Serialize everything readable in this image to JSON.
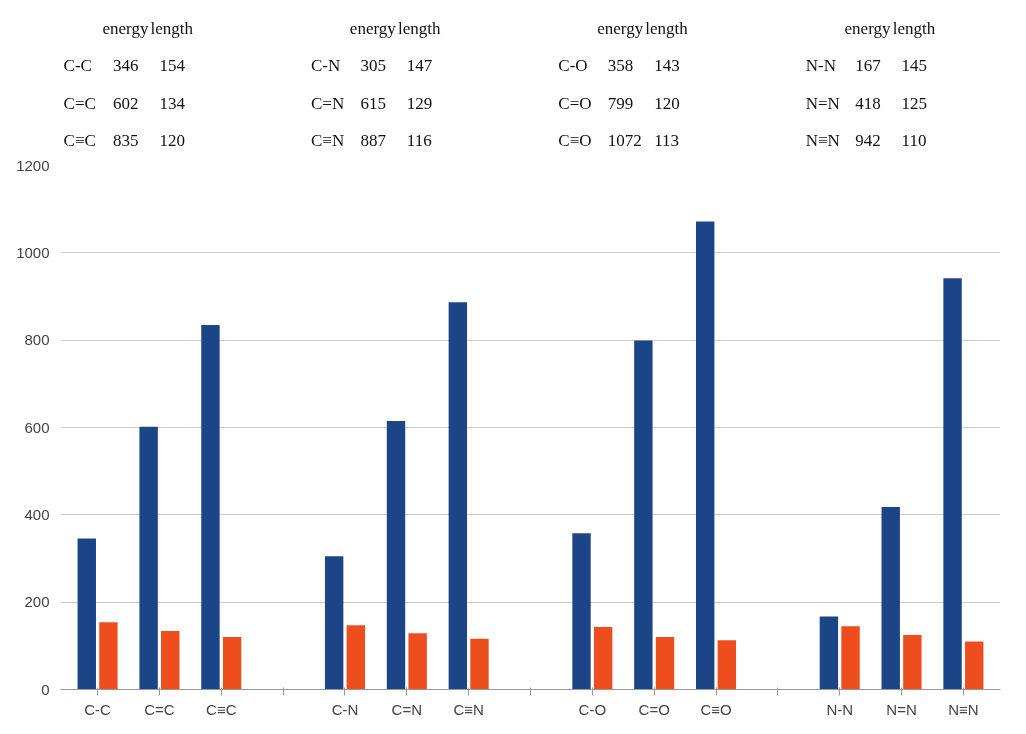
{
  "chart_data": {
    "type": "bar",
    "categories": [
      "C-C",
      "C=C",
      "C≡C",
      null,
      "C-N",
      "C=N",
      "C≡N",
      null,
      "C-O",
      "C=O",
      "C≡O",
      null,
      "N-N",
      "N=N",
      "N≡N"
    ],
    "series": [
      {
        "color": "#1c4587",
        "values": [
          346,
          602,
          835,
          null,
          305,
          615,
          887,
          null,
          358,
          799,
          1072,
          null,
          167,
          418,
          942
        ]
      },
      {
        "color": "#ee4d1e",
        "values": [
          154,
          134,
          120,
          null,
          147,
          129,
          116,
          null,
          143,
          120,
          113,
          null,
          145,
          125,
          110
        ]
      }
    ],
    "annotations": [
      "energy",
      "length",
      "C-C",
      "346",
      "154",
      "C=C",
      "602",
      "134",
      "C≡C",
      "835",
      "120",
      "energy",
      "length",
      "C-N",
      "305",
      "147",
      "C=N",
      "615",
      "129",
      "C≡N",
      "887",
      "116",
      "energy",
      "length",
      "C-O",
      "358",
      "143",
      "C=O",
      "799",
      "120",
      "C≡O",
      "1072",
      "113",
      "energy",
      "length",
      "N-N",
      "167",
      "145",
      "N=N",
      "418",
      "125",
      "N≡N",
      "942",
      "110"
    ],
    "ylim": [
      0,
      1200
    ],
    "yticks": [
      0,
      200,
      400,
      600,
      800,
      1000,
      1200
    ],
    "grid": "y"
  }
}
